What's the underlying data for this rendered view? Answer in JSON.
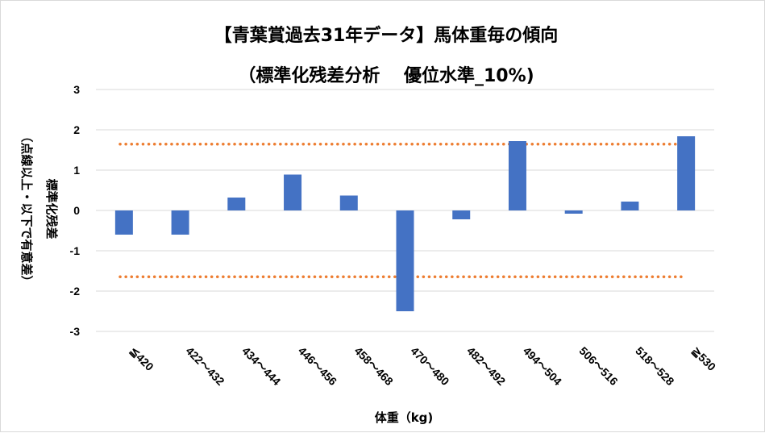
{
  "chart_data": {
    "type": "bar",
    "title": "【青葉賞過去31年データ】馬体重毎の傾向",
    "subtitle": "（標準化残差分析　 優位水準_10%)",
    "xlabel": "体重（kg)",
    "ylabel": "標準化残差",
    "ylabel_note": "（点線以上・以下で有意差）",
    "categories": [
      "≦420",
      "422～432",
      "434～444",
      "446～456",
      "458～468",
      "470～480",
      "482～492",
      "494～504",
      "506～516",
      "518～528",
      "≧530"
    ],
    "values": [
      -0.6,
      -0.6,
      0.32,
      0.89,
      0.37,
      -2.5,
      -0.22,
      1.72,
      -0.08,
      0.22,
      1.84
    ],
    "ylim": [
      -3,
      3
    ],
    "yticks": [
      "-3",
      "-2",
      "-1",
      "0",
      "1",
      "2",
      "3"
    ],
    "threshold_upper": 1.645,
    "threshold_lower": -1.645,
    "grid": true,
    "legend": "none",
    "bar_color": "#4472c4",
    "threshold_color": "#ed7d31",
    "grid_color": "#d9d9d9"
  }
}
